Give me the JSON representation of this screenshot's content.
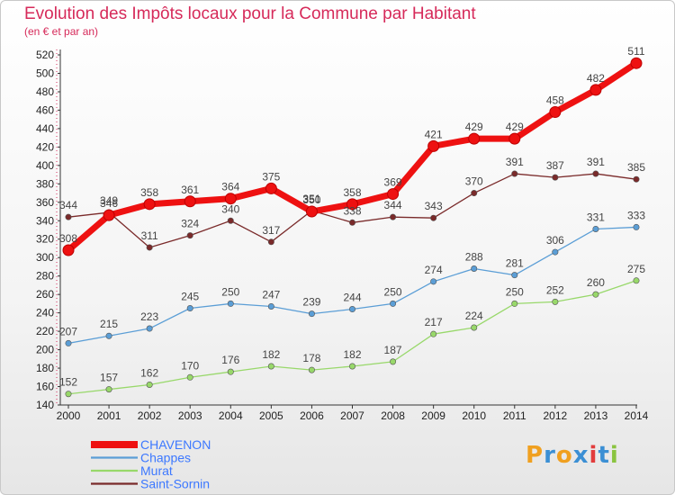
{
  "title": "Evolution des Impôts locaux pour la Commune par Habitant",
  "subtitle": "(en € et par an)",
  "logo": {
    "letters": [
      "P",
      "r",
      "o",
      "x",
      "i",
      "t",
      "i"
    ],
    "colors": [
      "#f0a020",
      "#3b8fd4",
      "#f0a020",
      "#3b8fd4",
      "#e23c3c",
      "#3b8fd4",
      "#8ac43f"
    ]
  },
  "chart_data": {
    "type": "line",
    "x": [
      "2000",
      "2001",
      "2002",
      "2003",
      "2004",
      "2005",
      "2006",
      "2007",
      "2008",
      "2009",
      "2010",
      "2011",
      "2012",
      "2013",
      "2014"
    ],
    "ylim": [
      140,
      520
    ],
    "yticks": [
      140,
      160,
      180,
      200,
      220,
      240,
      260,
      280,
      300,
      320,
      340,
      360,
      380,
      400,
      420,
      440,
      460,
      480,
      500,
      520
    ],
    "grid": false,
    "legend_position": "bottom-left",
    "series": [
      {
        "name": "CHAVENON",
        "color": "#ee1111",
        "width": 7,
        "values": [
          308,
          346,
          358,
          361,
          364,
          375,
          350,
          358,
          369,
          421,
          429,
          429,
          458,
          482,
          511
        ]
      },
      {
        "name": "Chappes",
        "color": "#5b9ed6",
        "width": 1.3,
        "values": [
          207,
          215,
          223,
          245,
          250,
          247,
          239,
          244,
          250,
          274,
          288,
          281,
          306,
          331,
          333
        ]
      },
      {
        "name": "Murat",
        "color": "#98d86a",
        "width": 1.3,
        "values": [
          152,
          157,
          162,
          170,
          176,
          182,
          178,
          182,
          187,
          217,
          224,
          250,
          252,
          260,
          275
        ]
      },
      {
        "name": "Saint-Sornin",
        "color": "#7a2a2a",
        "width": 1.3,
        "values": [
          344,
          349,
          311,
          324,
          340,
          317,
          351,
          338,
          344,
          343,
          370,
          391,
          387,
          391,
          385
        ]
      }
    ],
    "legend_colors": [
      "#3c78ff",
      "#3c78ff",
      "#3c78ff",
      "#3c78ff"
    ]
  }
}
